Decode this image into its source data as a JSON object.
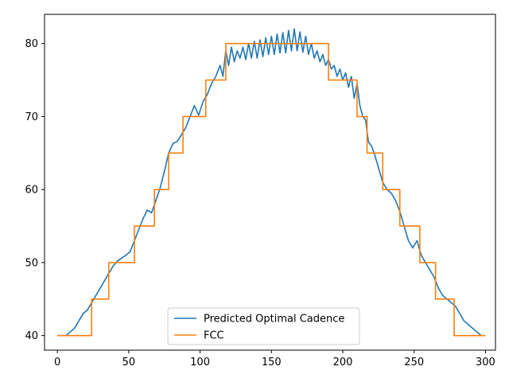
{
  "chart_data": {
    "type": "line",
    "title": "",
    "xlabel": "",
    "ylabel": "",
    "xlim": [
      -9,
      307
    ],
    "ylim": [
      38,
      84
    ],
    "xticks": [
      0,
      50,
      100,
      150,
      200,
      250,
      300
    ],
    "yticks": [
      40,
      50,
      60,
      70,
      80
    ],
    "legend": {
      "placement": "lower-center"
    },
    "grid": false,
    "series": [
      {
        "name": "Predicted Optimal Cadence",
        "color": "#1f77b4",
        "x": [
          0,
          6,
          9,
          12,
          15,
          18,
          21,
          24,
          27,
          30,
          33,
          36,
          39,
          42,
          45,
          48,
          51,
          54,
          57,
          60,
          63,
          66,
          69,
          72,
          75,
          78,
          81,
          84,
          87,
          90,
          93,
          96,
          99,
          102,
          105,
          108,
          111,
          114,
          116,
          118,
          120,
          122,
          124,
          126,
          128,
          130,
          132,
          134,
          136,
          138,
          140,
          142,
          144,
          146,
          148,
          150,
          152,
          154,
          156,
          158,
          160,
          162,
          164,
          166,
          168,
          170,
          172,
          174,
          176,
          178,
          180,
          182,
          184,
          186,
          188,
          190,
          192,
          194,
          196,
          198,
          200,
          202,
          204,
          206,
          208,
          210,
          212,
          214,
          216,
          218,
          220,
          222,
          225,
          228,
          231,
          234,
          237,
          240,
          243,
          246,
          249,
          252,
          255,
          258,
          261,
          264,
          267,
          270,
          273,
          276,
          279,
          282,
          285,
          288,
          291,
          294,
          297
        ],
        "values": [
          40.0,
          40.0,
          40.5,
          41.0,
          42.0,
          43.0,
          43.5,
          44.5,
          45.5,
          46.5,
          47.5,
          48.5,
          49.5,
          50.2,
          50.6,
          51.0,
          51.5,
          53.0,
          54.5,
          56.0,
          57.2,
          56.8,
          58.5,
          60.2,
          62.5,
          65.0,
          66.3,
          66.6,
          67.5,
          68.5,
          70.0,
          71.5,
          70.2,
          72.0,
          73.0,
          74.5,
          75.5,
          77.0,
          75.5,
          79.0,
          77.0,
          79.5,
          77.5,
          79.0,
          78.0,
          79.5,
          77.8,
          80.0,
          78.0,
          80.3,
          78.0,
          80.5,
          78.2,
          80.8,
          78.5,
          81.0,
          78.5,
          81.3,
          78.7,
          81.5,
          78.7,
          81.8,
          79.0,
          82.0,
          79.0,
          81.6,
          78.8,
          81.0,
          78.5,
          80.0,
          78.0,
          79.0,
          77.5,
          78.5,
          77.0,
          77.8,
          76.5,
          77.0,
          75.5,
          76.5,
          75.0,
          76.0,
          74.0,
          75.5,
          72.5,
          74.5,
          71.5,
          70.0,
          69.5,
          66.5,
          66.0,
          65.0,
          63.0,
          61.0,
          60.0,
          59.5,
          58.5,
          57.0,
          55.0,
          53.0,
          52.0,
          53.0,
          51.0,
          50.0,
          49.0,
          48.0,
          46.5,
          45.5,
          45.0,
          44.5,
          44.0,
          43.0,
          42.0,
          41.5,
          41.0,
          40.5,
          40.0
        ]
      },
      {
        "name": "FCC",
        "color": "#ff7f0e",
        "step": true,
        "x": [
          0,
          8,
          16,
          24,
          36,
          54,
          68,
          78,
          88,
          104,
          118,
          190,
          210,
          217,
          228,
          240,
          254,
          265,
          278,
          300
        ],
        "values": [
          40,
          40,
          40,
          45,
          50,
          55,
          60,
          65,
          70,
          75,
          80,
          75,
          70,
          65,
          60,
          55,
          50,
          45,
          40,
          40
        ]
      }
    ]
  }
}
